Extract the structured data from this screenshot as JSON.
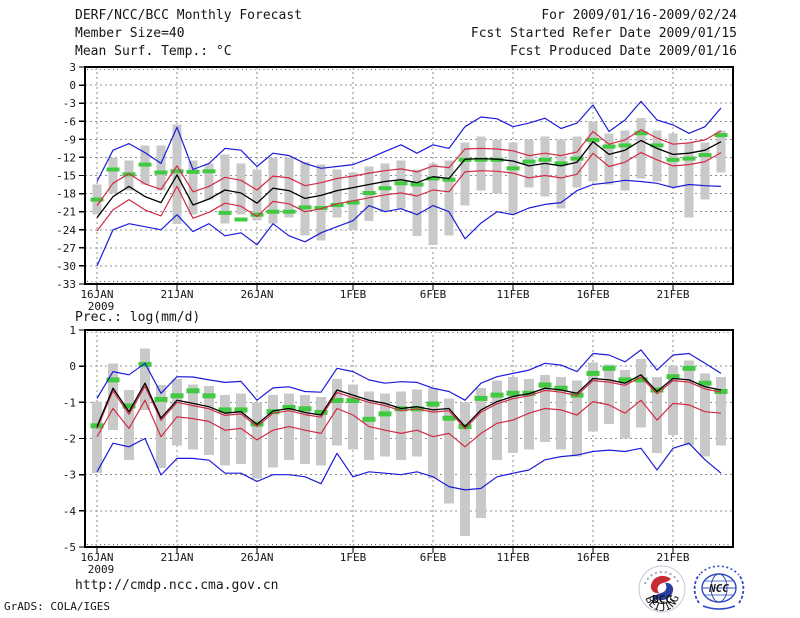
{
  "header": {
    "title": "DERF/NCC/BCC Monthly Forecast",
    "member_size": "Member Size=40",
    "for_range": "For 2009/01/16-2009/02/24",
    "fcst_started": "Fcst Started Refer Date 2009/01/15",
    "fcst_produced": "Fcst Produced Date 2009/01/16"
  },
  "footer": {
    "url": "http://cmdp.ncc.cma.gov.cn",
    "credit": "GrADS: COLA/IGES",
    "logos": {
      "bcc_text": "BCC",
      "bcc_ring_text": "BEIJING CLIMATE CENTER",
      "ncc_text": "NCC"
    }
  },
  "chart_data": [
    {
      "type": "line",
      "title": "Mean Surf. Temp.: °C",
      "ylim": [
        -33,
        3
      ],
      "ytick_step": 3,
      "days": 40,
      "grid": "dotted",
      "x_ticks": [
        {
          "day": 1,
          "label": "16JAN",
          "sub": "2009"
        },
        {
          "day": 6,
          "label": "21JAN"
        },
        {
          "day": 11,
          "label": "26JAN"
        },
        {
          "day": 17,
          "label": "1FEB"
        },
        {
          "day": 22,
          "label": "6FEB"
        },
        {
          "day": 27,
          "label": "11FEB"
        },
        {
          "day": 32,
          "label": "16FEB"
        },
        {
          "day": 37,
          "label": "21FEB"
        }
      ],
      "bars": {
        "name": "member-spread-bar",
        "color": "#c9c9c9",
        "width": 9,
        "top": [
          -16.5,
          -12,
          -12.5,
          -10,
          -10,
          -6.5,
          -12.5,
          -13,
          -11.5,
          -13,
          -14,
          -12,
          -12,
          -12.8,
          -13.2,
          -14,
          -14.5,
          -13.5,
          -13,
          -12.5,
          -14,
          -13,
          -12.5,
          -9.5,
          -8.5,
          -9,
          -9.5,
          -9,
          -8.5,
          -9,
          -8.5,
          -6,
          -8,
          -7.5,
          -5.5,
          -7.5,
          -8,
          -9.5,
          -9.5,
          -7.5
        ],
        "bottom": [
          -21.5,
          -18,
          -17.5,
          -16.5,
          -17.5,
          -23,
          -21.5,
          -19,
          -23,
          -21.5,
          -22.5,
          -23,
          -22,
          -25,
          -25.8,
          -22,
          -24,
          -22.5,
          -21,
          -20.5,
          -25,
          -26.5,
          -25,
          -20,
          -17.5,
          -18,
          -21.5,
          -17,
          -18.5,
          -20.5,
          -17,
          -16,
          -16.5,
          -17.5,
          -15.5,
          -16,
          -17,
          -22,
          -19,
          -14.5
        ]
      },
      "obs": {
        "name": "observation-dash",
        "color": "#41c941",
        "thickness": 4,
        "values": [
          -19,
          -14,
          -14.8,
          -13.2,
          -14.5,
          -14.3,
          -14.4,
          -14.3,
          -21.2,
          -22.3,
          -21.5,
          -21,
          -21,
          -20.3,
          -20.4,
          -19.9,
          -19.5,
          -17.9,
          -17.1,
          -16.3,
          -16.5,
          -15.5,
          -15.7,
          -12.4,
          -12.4,
          -12.4,
          -13.8,
          -12.7,
          -12.4,
          -13,
          -12.2,
          -9.1,
          -10.2,
          -10,
          -8,
          -10,
          -12.4,
          -12.2,
          -11.6,
          -8.3
        ]
      },
      "series": [
        {
          "name": "ensemble-max",
          "color": "#1c1cd8",
          "values": [
            -16,
            -10.8,
            -9.7,
            -11.2,
            -13,
            -7,
            -14,
            -13,
            -10.5,
            -10.8,
            -13.5,
            -11.3,
            -11.7,
            -13,
            -13.8,
            -13.5,
            -13.2,
            -12.2,
            -11,
            -9.9,
            -11.3,
            -9.9,
            -10.5,
            -6.9,
            -5.3,
            -5.6,
            -6.9,
            -6.3,
            -5.5,
            -7.2,
            -6.3,
            -3.3,
            -7.7,
            -5.8,
            -2.7,
            -5.8,
            -6.6,
            -8,
            -6.9,
            -3.8
          ]
        },
        {
          "name": "upper-std",
          "color": "#d22b45",
          "values": [
            -20,
            -16.3,
            -14.7,
            -16.4,
            -17.3,
            -13.4,
            -17.7,
            -16.8,
            -15.3,
            -15.8,
            -17.4,
            -15.1,
            -15.4,
            -16.7,
            -16.2,
            -15.5,
            -15.1,
            -14.6,
            -14.2,
            -13.9,
            -14.4,
            -13.4,
            -13.7,
            -10.6,
            -10.5,
            -10.6,
            -10.9,
            -11.7,
            -11.3,
            -11.7,
            -11.1,
            -7.7,
            -9.8,
            -9.1,
            -7.4,
            -8.8,
            -9.8,
            -9.6,
            -9.1,
            -7.6
          ]
        },
        {
          "name": "ensemble-mean",
          "color": "#000000",
          "values": [
            -22,
            -18.5,
            -16.8,
            -18.5,
            -19.5,
            -14.9,
            -19.9,
            -18.9,
            -17.4,
            -17.9,
            -19.6,
            -17.1,
            -17.5,
            -18.8,
            -18.3,
            -17.5,
            -17,
            -16.5,
            -16,
            -15.7,
            -16.2,
            -15.2,
            -15.5,
            -12.3,
            -12.2,
            -12.3,
            -12.6,
            -13.4,
            -13,
            -13.4,
            -12.8,
            -9.4,
            -11.5,
            -10.8,
            -9.2,
            -10.5,
            -11.5,
            -11.3,
            -10.8,
            -9.4
          ]
        },
        {
          "name": "lower-std",
          "color": "#d22b45",
          "values": [
            -24.2,
            -20.7,
            -19,
            -20.7,
            -21.7,
            -16.8,
            -22.1,
            -21.1,
            -19.6,
            -20.1,
            -21.8,
            -19.3,
            -19.7,
            -21,
            -20.5,
            -19.7,
            -19.2,
            -18.7,
            -18.2,
            -17.9,
            -18.4,
            -17.4,
            -17.7,
            -14.4,
            -14.2,
            -14.3,
            -14.6,
            -15.4,
            -15,
            -15.4,
            -14.8,
            -11.3,
            -13.5,
            -12.8,
            -11.2,
            -12.4,
            -13.4,
            -13.2,
            -12.7,
            -11.2
          ]
        },
        {
          "name": "ensemble-min",
          "color": "#1c1cd8",
          "values": [
            -30,
            -24,
            -23,
            -23.5,
            -24,
            -21.5,
            -24.3,
            -23,
            -25,
            -24.5,
            -26.5,
            -23,
            -25,
            -26,
            -24.5,
            -23.5,
            -22.5,
            -20,
            -21,
            -20.5,
            -21.5,
            -20,
            -21,
            -25.5,
            -22.9,
            -21,
            -21.5,
            -20.4,
            -19.8,
            -19.5,
            -17.5,
            -16.5,
            -16.2,
            -15.8,
            -16,
            -16.3,
            -17,
            -16.5,
            -16.7,
            -16.8
          ]
        }
      ]
    },
    {
      "type": "line",
      "title": "Prec.: log(mm/d)",
      "ylim": [
        -5,
        1
      ],
      "ytick_step": 1,
      "days": 40,
      "grid": "dotted",
      "x_ticks": [
        {
          "day": 1,
          "label": "16JAN",
          "sub": "2009"
        },
        {
          "day": 6,
          "label": "21JAN"
        },
        {
          "day": 11,
          "label": "26JAN"
        },
        {
          "day": 17,
          "label": "1FEB"
        },
        {
          "day": 22,
          "label": "6FEB"
        },
        {
          "day": 27,
          "label": "11FEB"
        },
        {
          "day": 32,
          "label": "16FEB"
        },
        {
          "day": 37,
          "label": "21FEB"
        }
      ],
      "bars": {
        "name": "member-spread-bar",
        "color": "#c9c9c9",
        "width": 10,
        "top": [
          -0.98,
          0.08,
          -0.66,
          0.49,
          -0.52,
          -0.35,
          -0.5,
          -0.55,
          -0.8,
          -0.75,
          -1,
          -0.8,
          -0.75,
          -0.8,
          -0.85,
          -0.35,
          -0.5,
          -0.7,
          -0.75,
          -0.7,
          -0.65,
          -0.6,
          -0.9,
          -1,
          -0.6,
          -0.4,
          -0.3,
          -0.35,
          -0.25,
          -0.3,
          -0.4,
          0.1,
          0.05,
          -0.1,
          0.2,
          -0.3,
          0,
          0.15,
          -0.2,
          -0.3
        ],
        "bottom": [
          -2.96,
          -1.77,
          -2.59,
          -1.21,
          -2.82,
          -2.2,
          -2.3,
          -2.45,
          -2.75,
          -2.7,
          -3.1,
          -2.8,
          -2.6,
          -2.7,
          -2.75,
          -2.2,
          -2.3,
          -2.6,
          -2.5,
          -2.6,
          -2.5,
          -3.1,
          -3.8,
          -4.7,
          -4.2,
          -2.6,
          -2.4,
          -2.3,
          -2.1,
          -2.3,
          -2.5,
          -1.8,
          -1.6,
          -2,
          -1.7,
          -2.4,
          -1.9,
          -2.2,
          -2.5,
          -2.2
        ]
      },
      "obs": {
        "name": "observation-dash",
        "color": "#41c941",
        "thickness": 5,
        "values": [
          -1.65,
          -0.38,
          -1.1,
          0.05,
          -0.92,
          -0.82,
          -0.68,
          -0.82,
          -1.21,
          -1.21,
          -1.6,
          -1.26,
          -1.14,
          -1.18,
          -1.28,
          -0.95,
          -0.95,
          -1.47,
          -1.32,
          -1.18,
          -1.18,
          -1.05,
          -1.44,
          -1.67,
          -0.89,
          -0.8,
          -0.75,
          -0.75,
          -0.52,
          -0.61,
          -0.8,
          -0.2,
          -0.06,
          -0.38,
          -0.38,
          -0.66,
          -0.29,
          -0.06,
          -0.47,
          -0.7
        ]
      },
      "series": [
        {
          "name": "ensemble-max",
          "color": "#1c1cd8",
          "values": [
            -0.89,
            -0.15,
            -0.24,
            0.08,
            -0.75,
            -0.29,
            -0.3,
            -0.38,
            -0.45,
            -0.42,
            -0.94,
            -0.6,
            -0.57,
            -0.7,
            -0.72,
            -0.06,
            -0.15,
            -0.38,
            -0.47,
            -0.43,
            -0.45,
            -0.61,
            -0.7,
            -0.94,
            -0.47,
            -0.29,
            -0.2,
            -0.11,
            0.08,
            0.03,
            -0.15,
            0.35,
            0.31,
            0.12,
            0.45,
            -0.11,
            0.31,
            0.35,
            0.08,
            -0.2
          ]
        },
        {
          "name": "upper-std",
          "color": "#d22b45",
          "values": [
            -1.73,
            -0.68,
            -1.33,
            -0.55,
            -1.5,
            -1,
            -1.09,
            -1.18,
            -1.36,
            -1.32,
            -1.67,
            -1.3,
            -1.23,
            -1.34,
            -1.41,
            -0.73,
            -0.87,
            -1,
            -1.09,
            -1.23,
            -1.18,
            -1.27,
            -1.23,
            -1.73,
            -1.27,
            -1.04,
            -0.9,
            -0.82,
            -0.67,
            -0.72,
            -0.81,
            -0.4,
            -0.44,
            -0.53,
            -0.3,
            -0.76,
            -0.4,
            -0.44,
            -0.63,
            -0.72
          ]
        },
        {
          "name": "ensemble-mean",
          "color": "#000000",
          "values": [
            -1.67,
            -0.61,
            -1.26,
            -0.47,
            -1.44,
            -0.94,
            -1.03,
            -1.12,
            -1.3,
            -1.26,
            -1.61,
            -1.24,
            -1.17,
            -1.28,
            -1.35,
            -0.66,
            -0.8,
            -0.94,
            -1.03,
            -1.17,
            -1.12,
            -1.21,
            -1.17,
            -1.67,
            -1.21,
            -0.98,
            -0.84,
            -0.76,
            -0.61,
            -0.66,
            -0.75,
            -0.34,
            -0.38,
            -0.47,
            -0.24,
            -0.7,
            -0.34,
            -0.38,
            -0.57,
            -0.66
          ]
        },
        {
          "name": "lower-std",
          "color": "#d22b45",
          "values": [
            -1.95,
            -1.17,
            -1.72,
            -0.94,
            -1.95,
            -1.4,
            -1.45,
            -1.53,
            -1.77,
            -1.72,
            -2.04,
            -1.77,
            -1.67,
            -1.77,
            -1.86,
            -1.17,
            -1.35,
            -1.67,
            -1.77,
            -1.86,
            -1.77,
            -1.95,
            -1.86,
            -2.23,
            -1.86,
            -1.58,
            -1.49,
            -1.3,
            -1.17,
            -1.21,
            -1.35,
            -0.98,
            -1.07,
            -1.3,
            -0.94,
            -1.49,
            -1.03,
            -1.07,
            -1.26,
            -1.3
          ]
        },
        {
          "name": "ensemble-min",
          "color": "#1c1cd8",
          "values": [
            -2.92,
            -2.13,
            -2.23,
            -2,
            -3.01,
            -2.55,
            -2.55,
            -2.6,
            -2.96,
            -2.96,
            -3.19,
            -3,
            -3,
            -3.06,
            -3.25,
            -2.41,
            -3.06,
            -2.92,
            -2.96,
            -3,
            -2.92,
            -3.06,
            -3.33,
            -3.42,
            -3.38,
            -3.06,
            -2.96,
            -2.87,
            -2.59,
            -2.5,
            -2.46,
            -2.36,
            -2.32,
            -2.36,
            -2.27,
            -2.87,
            -2.27,
            -2.13,
            -2.59,
            -2.96
          ]
        }
      ]
    }
  ]
}
